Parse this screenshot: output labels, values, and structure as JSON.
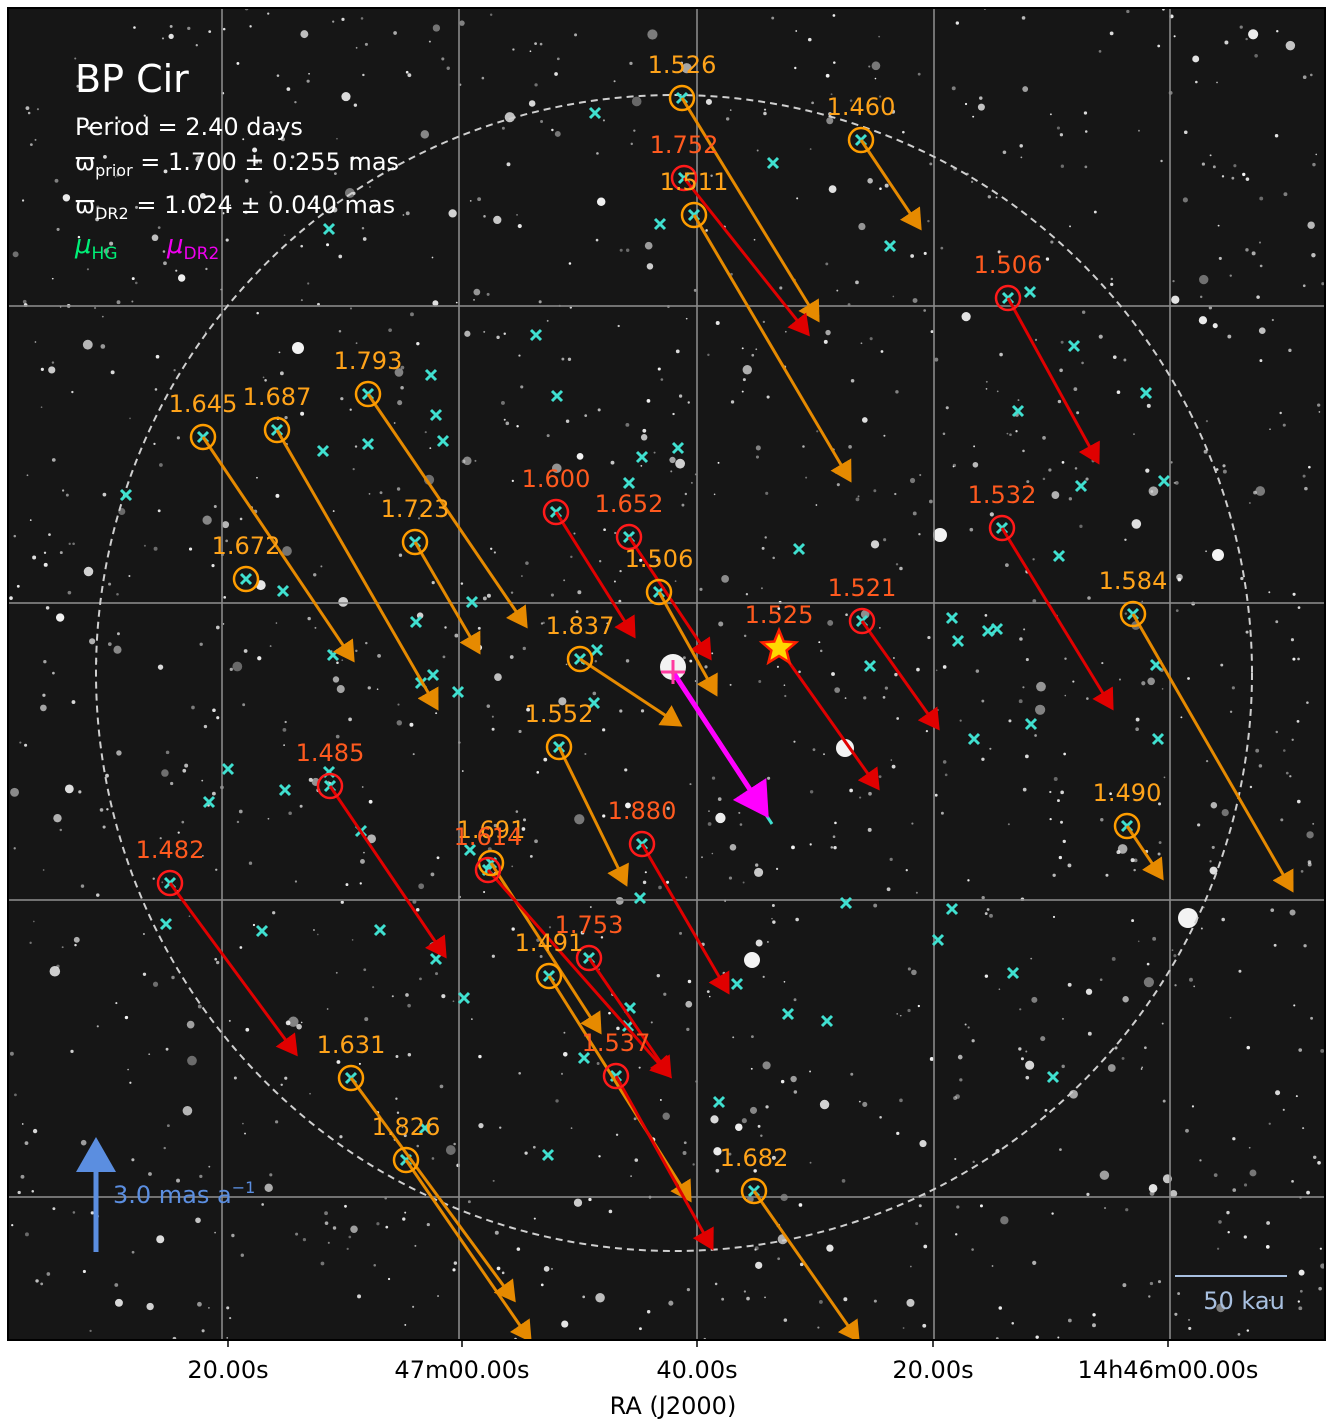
{
  "title": "BP Cir",
  "period": "Period =   2.40 days",
  "parallax_prior": {
    "symbol": "ϖ",
    "subscript": "prior",
    "text": " = 1.700 ± 0.255 mas"
  },
  "parallax_dr2": {
    "symbol": "ϖ",
    "subscript": "DR2",
    "text": " = 1.024 ± 0.040 mas"
  },
  "legend": [
    {
      "symbol": "μ",
      "subscript": "HG"
    },
    {
      "symbol": "μ",
      "subscript": "DR2"
    }
  ],
  "sources": [
    {
      "label": "1.526"
    },
    {
      "label": "1.460"
    },
    {
      "label": "1.752"
    },
    {
      "label": "1.511"
    },
    {
      "label": "1.506"
    },
    {
      "label": "1.793"
    },
    {
      "label": "1.645"
    },
    {
      "label": "1.687"
    },
    {
      "label": "1.600"
    },
    {
      "label": "1.652"
    },
    {
      "label": "1.723"
    },
    {
      "label": "1.532"
    },
    {
      "label": "1.672"
    },
    {
      "label": "1.506"
    },
    {
      "label": "1.584"
    },
    {
      "label": "1.521"
    },
    {
      "label": "1.525"
    },
    {
      "label": "1.837"
    },
    {
      "label": "1.552"
    },
    {
      "label": "1.485"
    },
    {
      "label": "1.880"
    },
    {
      "label": "1.490"
    },
    {
      "label": "1.691"
    },
    {
      "label": "1.614"
    },
    {
      "label": "1.482"
    },
    {
      "label": "1.753"
    },
    {
      "label": "1.491"
    },
    {
      "label": "1.537"
    },
    {
      "label": "1.631"
    },
    {
      "label": "1.826"
    },
    {
      "label": "1.682"
    }
  ],
  "scale_arrow": {
    "text": "3.0 mas a",
    "superscript": "−1"
  },
  "scale_bar": "50 kau",
  "x_tick_labels": [
    "20.00s",
    "47m00.00s",
    "40.00s",
    "20.00s",
    "14h46m00.00s"
  ],
  "x_axis_label": "RA (J2000)"
}
